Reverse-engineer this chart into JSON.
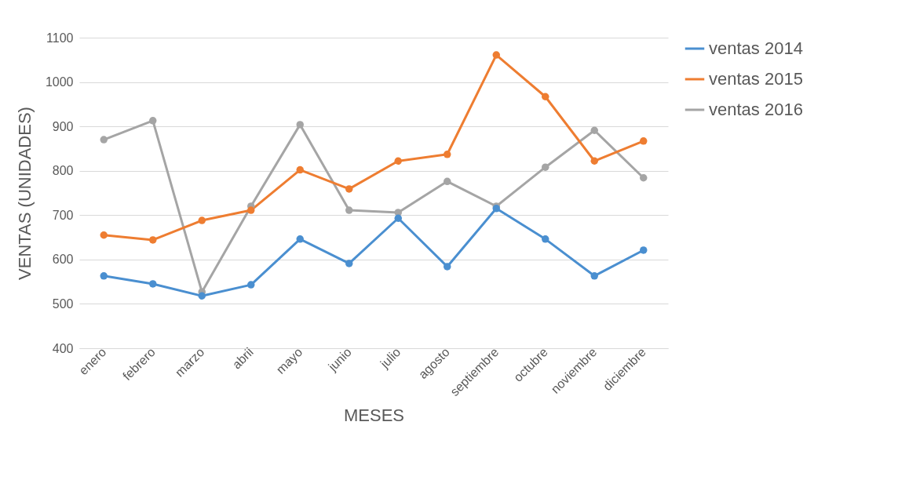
{
  "chart_data": {
    "type": "line",
    "xlabel": "MESES",
    "ylabel": "VENTAS (UNIDADES)",
    "categories": [
      "enero",
      "febrero",
      "marzo",
      "abril",
      "mayo",
      "junio",
      "julio",
      "agosto",
      "septiembre",
      "octubre",
      "noviembre",
      "diciembre"
    ],
    "series": [
      {
        "name": "ventas 2014",
        "color": "#4a8fd0",
        "values": [
          563,
          545,
          518,
          543,
          646,
          591,
          693,
          584,
          715,
          646,
          563,
          621
        ]
      },
      {
        "name": "ventas 2015",
        "color": "#ee7d31",
        "values": [
          655,
          644,
          688,
          711,
          802,
          759,
          822,
          837,
          1061,
          967,
          822,
          867
        ]
      },
      {
        "name": "ventas 2016",
        "color": "#a5a5a5",
        "values": [
          870,
          913,
          527,
          720,
          904,
          711,
          706,
          776,
          720,
          808,
          891,
          784
        ]
      }
    ],
    "ylim": [
      400,
      1100
    ],
    "yticks": [
      400,
      500,
      600,
      700,
      800,
      900,
      1000,
      1100
    ],
    "grid": "y",
    "legend": "right",
    "marker": "circle",
    "line_style": "solid"
  }
}
